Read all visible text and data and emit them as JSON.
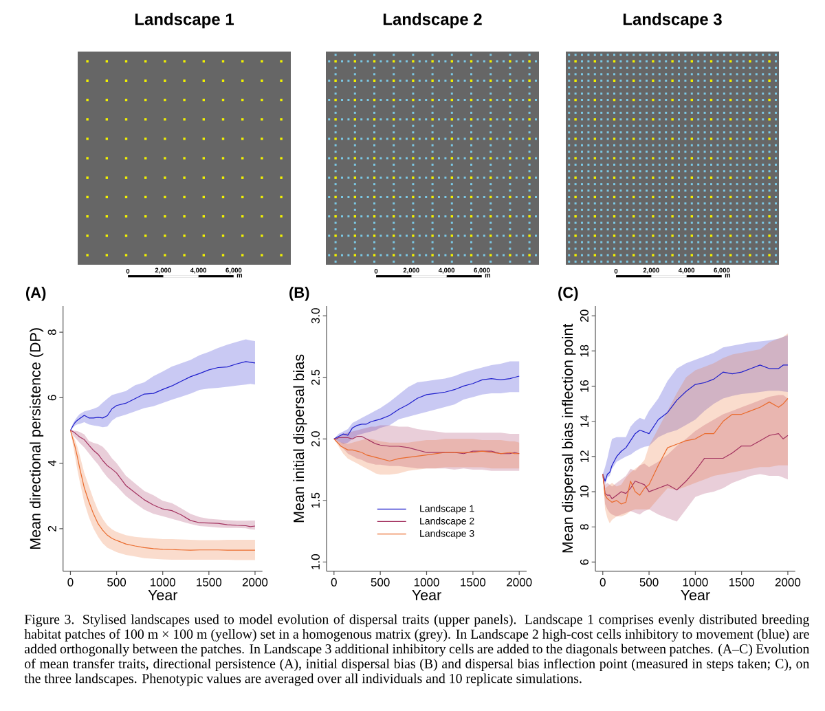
{
  "chart_data": [
    {
      "type": "bar",
      "title": "Landscape 1",
      "orientation": "horizontal",
      "stacked": true,
      "categories": [
        null
      ],
      "xlim": [
        0,
        6000
      ],
      "xticks": [
        0,
        {
          "value": 2000,
          "label": "2,000"
        },
        {
          "value": 4000,
          "label": "4,000"
        },
        {
          "value": 6000,
          "label": "6,000"
        }
      ],
      "xlabel": "m",
      "tick_labels": "x",
      "series": [
        {
          "color": "#000000",
          "values": [
            2000
          ]
        },
        {
          "color": "#ffffff",
          "values": [
            2000
          ]
        },
        {
          "color": "#000000",
          "values": [
            2000
          ]
        }
      ]
    },
    {
      "type": "bar",
      "title": "Landscape 2",
      "orientation": "horizontal",
      "stacked": true,
      "categories": [
        null
      ],
      "xlim": [
        0,
        6000
      ],
      "xticks": [
        0,
        {
          "value": 2000,
          "label": "2,000"
        },
        {
          "value": 4000,
          "label": "4,000"
        },
        {
          "value": 6000,
          "label": "6,000"
        }
      ],
      "xlabel": "m",
      "tick_labels": "x",
      "series": [
        {
          "color": "#000000",
          "values": [
            2000
          ]
        },
        {
          "color": "#ffffff",
          "values": [
            2000
          ]
        },
        {
          "color": "#000000",
          "values": [
            2000
          ]
        }
      ]
    },
    {
      "type": "bar",
      "title": "Landscape 3",
      "orientation": "horizontal",
      "stacked": true,
      "categories": [
        null
      ],
      "xlim": [
        0,
        6000
      ],
      "xticks": [
        0,
        {
          "value": 2000,
          "label": "2,000"
        },
        {
          "value": 4000,
          "label": "4,000"
        },
        {
          "value": 6000,
          "label": "6,000"
        }
      ],
      "xlabel": "m",
      "tick_labels": "x",
      "series": [
        {
          "color": "#000000",
          "values": [
            2000
          ]
        },
        {
          "color": "#ffffff",
          "values": [
            2000
          ]
        },
        {
          "color": "#000000",
          "values": [
            2000
          ]
        }
      ]
    },
    {
      "type": "line",
      "title": "(A)",
      "xlabel": "Year",
      "ylabel": "Mean directional persistence (DP)",
      "x": [
        0,
        25,
        50,
        75,
        100,
        150,
        200,
        250,
        300,
        350,
        400,
        450,
        500,
        600,
        700,
        800,
        900,
        1000,
        1100,
        1200,
        1300,
        1400,
        1500,
        1600,
        1700,
        1800,
        1900,
        1950,
        2000
      ],
      "xlim": [
        -80,
        2080
      ],
      "ylim": [
        0.7,
        8.8
      ],
      "xticks": [
        0,
        500,
        1000,
        1500,
        2000
      ],
      "yticks": [
        2,
        4,
        6,
        8
      ],
      "series": [
        {
          "color": "#1e1ecc",
          "values": [
            5.0,
            5.13,
            5.24,
            5.31,
            5.36,
            5.46,
            5.38,
            5.38,
            5.4,
            5.38,
            5.45,
            5.66,
            5.76,
            5.83,
            5.97,
            6.11,
            6.13,
            6.25,
            6.36,
            6.5,
            6.64,
            6.74,
            6.85,
            6.92,
            6.94,
            7.03,
            7.1,
            7.08,
            7.06
          ],
          "upper": [
            5.0,
            5.2,
            5.32,
            5.42,
            5.5,
            5.58,
            5.62,
            5.66,
            5.72,
            5.85,
            5.97,
            6.08,
            6.12,
            6.2,
            6.38,
            6.47,
            6.66,
            6.8,
            6.95,
            7.05,
            7.15,
            7.3,
            7.4,
            7.52,
            7.62,
            7.7,
            7.78,
            7.75,
            7.73
          ],
          "lower": [
            5.0,
            5.08,
            5.15,
            5.18,
            5.2,
            5.25,
            5.18,
            5.15,
            5.13,
            5.1,
            5.12,
            5.3,
            5.4,
            5.48,
            5.58,
            5.68,
            5.74,
            5.84,
            5.94,
            6.03,
            6.12,
            6.24,
            6.28,
            6.3,
            6.33,
            6.37,
            6.4,
            6.42,
            6.4
          ]
        },
        {
          "color": "#a3325f",
          "values": [
            5.0,
            4.97,
            4.92,
            4.86,
            4.8,
            4.72,
            4.55,
            4.39,
            4.27,
            4.08,
            3.92,
            3.82,
            3.7,
            3.32,
            3.1,
            2.88,
            2.72,
            2.6,
            2.55,
            2.42,
            2.25,
            2.18,
            2.17,
            2.16,
            2.12,
            2.1,
            2.09,
            2.06,
            2.08
          ],
          "upper": [
            5.0,
            5.0,
            4.99,
            4.98,
            4.95,
            4.88,
            4.68,
            4.62,
            4.58,
            4.5,
            4.35,
            4.15,
            4.0,
            3.62,
            3.38,
            3.15,
            3.02,
            2.85,
            2.78,
            2.62,
            2.45,
            2.35,
            2.3,
            2.28,
            2.26,
            2.24,
            2.24,
            2.25,
            2.25
          ],
          "lower": [
            5.0,
            4.86,
            4.78,
            4.7,
            4.62,
            4.48,
            4.3,
            4.12,
            3.96,
            3.75,
            3.57,
            3.43,
            3.3,
            3.0,
            2.78,
            2.58,
            2.45,
            2.38,
            2.3,
            2.22,
            2.14,
            2.08,
            2.06,
            2.03,
            2.02,
            2.02,
            2.01,
            1.98,
            1.97
          ]
        },
        {
          "color": "#ea6b2d",
          "values": [
            5.0,
            4.75,
            4.5,
            4.2,
            3.85,
            3.25,
            2.82,
            2.45,
            2.15,
            1.95,
            1.8,
            1.7,
            1.64,
            1.53,
            1.47,
            1.42,
            1.39,
            1.37,
            1.36,
            1.35,
            1.34,
            1.35,
            1.35,
            1.35,
            1.34,
            1.34,
            1.34,
            1.34,
            1.34
          ],
          "upper": [
            5.0,
            4.85,
            4.7,
            4.5,
            4.25,
            3.7,
            3.3,
            2.9,
            2.55,
            2.3,
            2.1,
            1.98,
            1.9,
            1.8,
            1.75,
            1.72,
            1.7,
            1.68,
            1.68,
            1.67,
            1.66,
            1.65,
            1.65,
            1.65,
            1.66,
            1.66,
            1.66,
            1.66,
            1.66
          ],
          "lower": [
            5.0,
            4.6,
            4.2,
            3.8,
            3.45,
            2.8,
            2.35,
            2.0,
            1.75,
            1.55,
            1.42,
            1.35,
            1.28,
            1.2,
            1.15,
            1.1,
            1.08,
            1.06,
            1.05,
            1.05,
            1.05,
            1.05,
            1.05,
            1.05,
            1.05,
            1.04,
            1.04,
            1.04,
            1.04
          ]
        }
      ]
    },
    {
      "type": "line",
      "title": "(B)",
      "xlabel": "Year",
      "ylabel": "Mean initial dispersal bias",
      "legend": "bottom",
      "x": [
        0,
        25,
        50,
        75,
        100,
        150,
        200,
        250,
        300,
        350,
        400,
        450,
        500,
        600,
        700,
        800,
        900,
        1000,
        1100,
        1200,
        1300,
        1400,
        1500,
        1600,
        1700,
        1800,
        1900,
        1950,
        2000
      ],
      "xlim": [
        -80,
        2080
      ],
      "ylim": [
        0.925,
        3.08
      ],
      "xticks": [
        0,
        500,
        1000,
        1500,
        2000
      ],
      "yticks": [
        {
          "value": 1,
          "label": "1.0"
        },
        1.5,
        {
          "value": 2,
          "label": "2.0"
        },
        2.5,
        {
          "value": 3,
          "label": "3.0"
        }
      ],
      "series": [
        {
          "name": "Landscape 1",
          "color": "#1e1ecc",
          "values": [
            2.0,
            2.01,
            2.02,
            2.03,
            2.04,
            2.03,
            2.09,
            2.11,
            2.12,
            2.12,
            2.14,
            2.15,
            2.16,
            2.19,
            2.24,
            2.28,
            2.33,
            2.36,
            2.37,
            2.38,
            2.4,
            2.43,
            2.45,
            2.48,
            2.49,
            2.48,
            2.49,
            2.5,
            2.51
          ],
          "upper": [
            2.0,
            2.02,
            2.04,
            2.05,
            2.06,
            2.08,
            2.13,
            2.15,
            2.17,
            2.19,
            2.21,
            2.23,
            2.25,
            2.3,
            2.36,
            2.42,
            2.46,
            2.47,
            2.48,
            2.49,
            2.51,
            2.54,
            2.56,
            2.58,
            2.6,
            2.61,
            2.63,
            2.63,
            2.63
          ],
          "lower": [
            2.0,
            1.99,
            1.98,
            1.97,
            1.96,
            1.97,
            2.0,
            2.03,
            2.04,
            2.05,
            2.06,
            2.07,
            2.09,
            2.11,
            2.16,
            2.18,
            2.2,
            2.22,
            2.24,
            2.26,
            2.28,
            2.32,
            2.34,
            2.36,
            2.37,
            2.37,
            2.38,
            2.38,
            2.38
          ]
        },
        {
          "name": "Landscape 2",
          "color": "#a3325f",
          "values": [
            2.0,
            2.0,
            2.01,
            2.01,
            2.01,
            2.01,
            2.0,
            2.02,
            2.02,
            2.0,
            1.98,
            1.96,
            1.95,
            1.94,
            1.94,
            1.93,
            1.91,
            1.89,
            1.89,
            1.89,
            1.89,
            1.88,
            1.9,
            1.9,
            1.9,
            1.88,
            1.88,
            1.89,
            1.88
          ],
          "upper": [
            2.0,
            2.01,
            2.02,
            2.03,
            2.04,
            2.05,
            2.06,
            2.07,
            2.08,
            2.09,
            2.1,
            2.1,
            2.11,
            2.11,
            2.1,
            2.1,
            2.08,
            2.07,
            2.06,
            2.05,
            2.05,
            2.05,
            2.05,
            2.05,
            2.05,
            2.05,
            2.04,
            2.04,
            2.04
          ],
          "lower": [
            2.0,
            1.98,
            1.96,
            1.94,
            1.92,
            1.88,
            1.86,
            1.84,
            1.83,
            1.81,
            1.8,
            1.79,
            1.79,
            1.78,
            1.78,
            1.77,
            1.76,
            1.76,
            1.76,
            1.76,
            1.75,
            1.76,
            1.75,
            1.75,
            1.74,
            1.74,
            1.74,
            1.74,
            1.74
          ]
        },
        {
          "name": "Landscape 3",
          "color": "#ea6b2d",
          "values": [
            2.0,
            1.98,
            1.96,
            1.94,
            1.93,
            1.91,
            1.91,
            1.9,
            1.89,
            1.87,
            1.86,
            1.85,
            1.84,
            1.82,
            1.84,
            1.85,
            1.86,
            1.87,
            1.88,
            1.89,
            1.89,
            1.89,
            1.89,
            1.9,
            1.89,
            1.88,
            1.89,
            1.88,
            1.88
          ],
          "upper": [
            2.0,
            1.99,
            1.98,
            1.97,
            1.97,
            1.96,
            1.97,
            1.98,
            1.99,
            2.0,
            2.0,
            1.99,
            1.98,
            1.97,
            1.97,
            1.97,
            1.98,
            1.99,
            1.99,
            2.0,
            2.0,
            2.0,
            2.0,
            1.99,
            1.99,
            1.99,
            1.98,
            1.98,
            1.97
          ],
          "lower": [
            2.0,
            1.97,
            1.94,
            1.91,
            1.88,
            1.84,
            1.82,
            1.8,
            1.78,
            1.76,
            1.74,
            1.72,
            1.71,
            1.71,
            1.72,
            1.74,
            1.75,
            1.76,
            1.76,
            1.77,
            1.77,
            1.77,
            1.77,
            1.77,
            1.76,
            1.76,
            1.76,
            1.76,
            1.76
          ]
        }
      ]
    },
    {
      "type": "line",
      "title": "(C)",
      "xlabel": "Year",
      "ylabel": "Mean dispersal bias inflection point",
      "x": [
        0,
        25,
        50,
        75,
        100,
        150,
        200,
        250,
        300,
        350,
        400,
        450,
        500,
        600,
        700,
        800,
        900,
        1000,
        1100,
        1200,
        1300,
        1400,
        1500,
        1600,
        1700,
        1800,
        1900,
        1950,
        2000
      ],
      "xlim": [
        -80,
        2080
      ],
      "ylim": [
        5.48,
        20.56
      ],
      "xticks": [
        0,
        500,
        1000,
        1500,
        2000
      ],
      "yticks": [
        6,
        8,
        10,
        12,
        14,
        16,
        18,
        20
      ],
      "series": [
        {
          "color": "#1e1ecc",
          "values": [
            11.0,
            10.6,
            11.0,
            11.1,
            11.5,
            12.0,
            12.3,
            12.5,
            12.9,
            13.3,
            13.5,
            13.4,
            13.3,
            14.1,
            14.5,
            15.2,
            15.7,
            16.1,
            16.2,
            16.4,
            16.8,
            16.7,
            16.8,
            17.0,
            17.2,
            17.0,
            17.0,
            17.2,
            17.2
          ],
          "upper": [
            11.0,
            11.4,
            11.9,
            12.5,
            13.0,
            13.1,
            13.1,
            13.1,
            13.7,
            14.0,
            14.2,
            14.1,
            14.6,
            15.3,
            16.3,
            17.0,
            17.3,
            17.5,
            17.7,
            17.9,
            18.2,
            18.3,
            18.4,
            18.5,
            18.55,
            18.6,
            18.7,
            18.8,
            18.9
          ],
          "lower": [
            11.0,
            10.4,
            10.8,
            10.9,
            11.3,
            11.7,
            11.85,
            12.0,
            12.1,
            12.3,
            12.45,
            12.55,
            12.6,
            13.1,
            13.35,
            13.5,
            13.8,
            14.1,
            14.6,
            15.0,
            15.3,
            15.45,
            15.55,
            15.6,
            15.67,
            15.74,
            15.74,
            15.7,
            15.67
          ]
        },
        {
          "color": "#a3325f",
          "values": [
            11.0,
            9.9,
            9.8,
            9.8,
            9.6,
            9.8,
            10.0,
            9.9,
            10.2,
            10.6,
            10.5,
            10.4,
            10.0,
            10.2,
            10.4,
            10.1,
            10.6,
            11.2,
            11.9,
            11.9,
            11.9,
            12.2,
            12.6,
            12.6,
            12.9,
            13.2,
            13.3,
            13.0,
            13.2
          ],
          "upper": [
            11.0,
            10.4,
            10.5,
            10.4,
            10.3,
            10.5,
            10.7,
            10.9,
            11.3,
            11.2,
            11.5,
            11.6,
            11.4,
            11.7,
            12.1,
            12.6,
            13.0,
            13.45,
            13.8,
            14.1,
            14.4,
            14.6,
            14.8,
            15.0,
            15.2,
            15.4,
            15.5,
            15.5,
            15.3
          ],
          "lower": [
            11.0,
            9.3,
            9.0,
            8.8,
            8.7,
            8.6,
            8.7,
            8.8,
            8.9,
            8.8,
            8.7,
            8.9,
            9.0,
            8.7,
            8.5,
            8.3,
            9.0,
            9.7,
            9.9,
            10.0,
            10.2,
            10.5,
            10.7,
            10.9,
            11.0,
            10.9,
            10.9,
            10.8,
            10.7
          ]
        },
        {
          "color": "#ea6b2d",
          "values": [
            11.0,
            9.8,
            9.6,
            9.5,
            9.4,
            9.5,
            9.3,
            9.4,
            10.6,
            10.0,
            9.8,
            10.2,
            10.4,
            11.5,
            12.5,
            12.7,
            12.9,
            13.0,
            13.3,
            13.3,
            14.0,
            14.4,
            14.4,
            14.6,
            14.8,
            15.1,
            14.8,
            15.0,
            15.3
          ],
          "upper": [
            11.0,
            10.2,
            10.3,
            10.4,
            10.5,
            10.3,
            10.4,
            10.8,
            11.1,
            11.3,
            11.5,
            11.8,
            12.6,
            13.6,
            14.6,
            15.6,
            16.5,
            16.9,
            17.1,
            17.3,
            17.6,
            17.8,
            17.9,
            18.0,
            18.1,
            18.5,
            18.7,
            18.8,
            19.0
          ],
          "lower": [
            11.0,
            9.0,
            8.5,
            8.2,
            8.4,
            8.6,
            8.6,
            8.7,
            8.9,
            9.0,
            9.0,
            9.0,
            9.0,
            9.6,
            10.2,
            10.1,
            10.3,
            10.5,
            10.7,
            10.9,
            11.0,
            11.1,
            11.2,
            11.3,
            11.4,
            11.4,
            11.5,
            11.5,
            11.5
          ]
        }
      ],
      "annotations": [
        "Figure 3. Stylised landscapes used to model evolution of dispersal traits (upper panels). Landscape 1 comprises evenly distributed breeding habitat patches of 100 m × 100 m (yellow) set in a homogenous matrix (grey). In Landscape 2 high-cost cells inhibitory to movement (blue) are added orthogonally between the patches. In Landscape 3 additional inhibitory cells are added to the diagonals between patches. (A–C) Evolution of mean transfer traits, directional persistence (A), initial dispersal bias (B) and dispersal bias inflection point (measured in steps taken; C), on the three landscapes. Phenotypic values are averaged over all individuals and 10 replicate simulations."
      ]
    }
  ]
}
